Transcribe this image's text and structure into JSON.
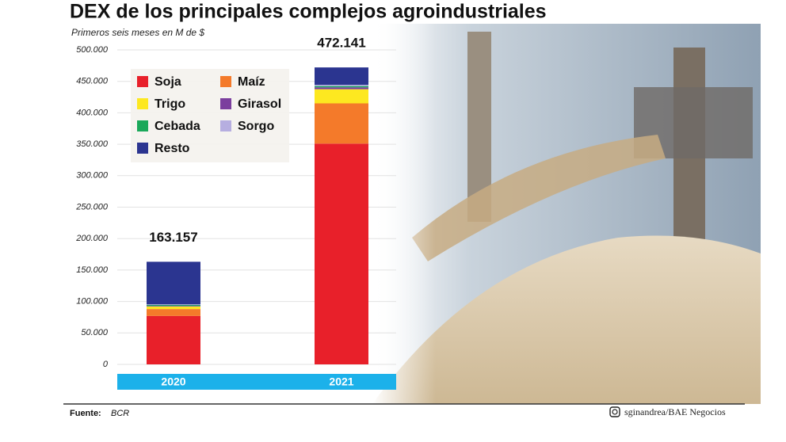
{
  "chart_data": {
    "type": "stacked_bar",
    "title": "DEX de los principales complejos agroindustriales",
    "subtitle": "Primeros seis meses en M de $",
    "categories": [
      "2020",
      "2021"
    ],
    "series": [
      {
        "name": "Soja",
        "color": "#e8202a",
        "values": [
          77000,
          351000
        ]
      },
      {
        "name": "Maíz",
        "color": "#f47a2a",
        "values": [
          11000,
          64000
        ]
      },
      {
        "name": "Trigo",
        "color": "#fde820",
        "values": [
          4000,
          22500
        ]
      },
      {
        "name": "Girasol",
        "color": "#7b3f9e",
        "values": [
          1000,
          3000
        ]
      },
      {
        "name": "Cebada",
        "color": "#1aa85a",
        "values": [
          1500,
          2000
        ]
      },
      {
        "name": "Sorgo",
        "color": "#b6aee0",
        "values": [
          1000,
          2000
        ]
      },
      {
        "name": "Resto",
        "color": "#2b3590",
        "values": [
          67657,
          27641
        ]
      }
    ],
    "totals": {
      "values": [
        163157,
        472141
      ],
      "value_labels": [
        "163.157",
        "472.141"
      ]
    },
    "ylim": [
      0,
      500000
    ],
    "yticks": [
      0,
      {
        "value": 50000,
        "label": "50.000"
      },
      {
        "value": 100000,
        "label": "100.000"
      },
      {
        "value": 150000,
        "label": "150.000"
      },
      {
        "value": 200000,
        "label": "200.000"
      },
      {
        "value": 250000,
        "label": "250.000"
      },
      {
        "value": 300000,
        "label": "300.000"
      },
      {
        "value": 350000,
        "label": "350.000"
      },
      {
        "value": 400000,
        "label": "400.000"
      },
      {
        "value": 450000,
        "label": "450.000"
      },
      {
        "value": 500000,
        "label": "500.000"
      }
    ],
    "grid": true,
    "source_label": "Fuente:",
    "source": "BCR",
    "credit": "sginandrea/BAE Negocios"
  }
}
